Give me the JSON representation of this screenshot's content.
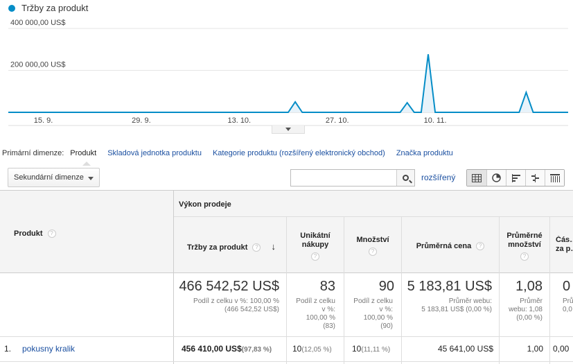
{
  "chart_data": {
    "type": "area",
    "series": [
      {
        "name": "Tržby za produkt",
        "color": "#058dc7"
      }
    ],
    "y_tick_labels": [
      "400 000,00 US$",
      "200 000,00 US$"
    ],
    "y_ticks": [
      400000,
      200000
    ],
    "ylim": [
      0,
      400000
    ],
    "x_tick_labels": [
      "15. 9.",
      "29. 9.",
      "13. 10.",
      "27. 10.",
      "10. 11."
    ],
    "x_tick_days": [
      5,
      19,
      33,
      47,
      61
    ],
    "xlim_days": [
      0,
      80
    ],
    "values": [
      0,
      0,
      0,
      0,
      0,
      0,
      0,
      0,
      0,
      0,
      0,
      0,
      0,
      0,
      0,
      0,
      0,
      0,
      0,
      0,
      0,
      0,
      0,
      0,
      0,
      0,
      0,
      0,
      0,
      0,
      0,
      0,
      0,
      0,
      0,
      0,
      0,
      0,
      0,
      0,
      0,
      50000,
      0,
      0,
      0,
      0,
      0,
      0,
      0,
      0,
      0,
      0,
      0,
      0,
      0,
      0,
      0,
      45641,
      0,
      0,
      277000,
      0,
      0,
      0,
      0,
      0,
      0,
      0,
      0,
      0,
      0,
      0,
      0,
      0,
      95000,
      0,
      0,
      0,
      0,
      0,
      0
    ],
    "grid": true,
    "legend": "top-left"
  },
  "legend_label": "Tržby za produkt",
  "dims": {
    "label": "Primární dimenze:",
    "active": "Produkt",
    "links": [
      "Skladová jednotka produktu",
      "Kategorie produktu (rozšířený elektronický obchod)",
      "Značka produktu"
    ]
  },
  "toolbar": {
    "secondary": "Sekundární dimenze",
    "search_value": "",
    "advanced": "rozšířený"
  },
  "table": {
    "group_header": "Výkon prodeje",
    "col_product": "Produkt",
    "columns": [
      {
        "title": "Tržby za produkt"
      },
      {
        "title": "Unikátní nákupy"
      },
      {
        "title": "Množství"
      },
      {
        "title": "Průměrná cena"
      },
      {
        "title": "Průměrné množství"
      },
      {
        "title": "Čás… za p…"
      }
    ],
    "totals": {
      "revenue": "466 542,52 US$",
      "revenue_sub1": "Podíl z celku v %: 100,00 %",
      "revenue_sub2": "(466 542,52 US$)",
      "purchases": "83",
      "purchases_sub": [
        "Podíl z celku",
        "v %:",
        "100,00 %",
        "(83)"
      ],
      "qty": "90",
      "qty_sub": [
        "Podíl z celku",
        "v %:",
        "100,00 %",
        "(90)"
      ],
      "price": "5 183,81 US$",
      "price_sub1": "Průměr webu:",
      "price_sub2": "5 183,81 US$ (0,00 %)",
      "avgqty": "1,08",
      "avgqty_sub": [
        "Průměr",
        "webu: 1,08",
        "(0,00 %)"
      ],
      "last": "0",
      "last_sub": [
        "Prů…",
        "0,0…"
      ]
    },
    "rows": [
      {
        "index": "1.",
        "product": "pokusny kralik",
        "revenue": "456 410,00 US$",
        "revenue_pct": "(97,83 %)",
        "purchases": "10",
        "purchases_pct": "(12,05 %)",
        "qty": "10",
        "qty_pct": "(11,11 %)",
        "price": "45 641,00 US$",
        "avgqty": "1,00",
        "last": "0,00"
      }
    ]
  }
}
